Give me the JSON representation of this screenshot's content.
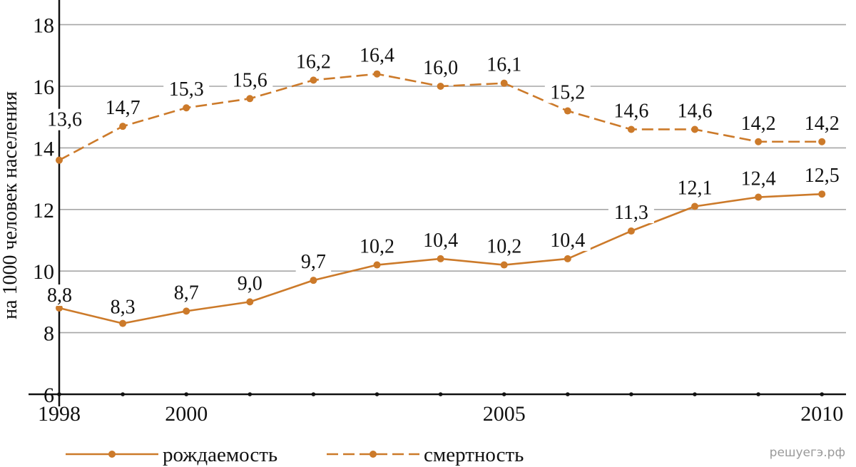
{
  "colors": {
    "series": "#cc7a2a",
    "grid": "#a6a6a6",
    "axis": "#111111"
  },
  "watermark": "решуегэ.рф",
  "chart_data": {
    "type": "line",
    "ylabel": "на 1000 человек населения",
    "ylim": [
      6,
      19
    ],
    "yticks": [
      6,
      8,
      10,
      12,
      14,
      16,
      18
    ],
    "ytick_labels": [
      "6",
      "8",
      "10",
      "12",
      "14",
      "16",
      "18"
    ],
    "x": [
      1998,
      1999,
      2000,
      2001,
      2002,
      2003,
      2004,
      2005,
      2006,
      2007,
      2008,
      2009,
      2010
    ],
    "xticks_labeled": [
      1998,
      2000,
      2005,
      2010
    ],
    "xtick_labels": [
      "1998",
      "2000",
      "2005",
      "2010"
    ],
    "grid": true,
    "legend_position": "bottom",
    "series": [
      {
        "name": "рождаемость",
        "style": "solid",
        "values": [
          8.8,
          8.3,
          8.7,
          9.0,
          9.7,
          10.2,
          10.4,
          10.2,
          10.4,
          11.3,
          12.1,
          12.4,
          12.5
        ],
        "labels": [
          "8,8",
          "8,3",
          "8,7",
          "9,0",
          "9,7",
          "10,2",
          "10,4",
          "10,2",
          "10,4",
          "11,3",
          "12,1",
          "12,4",
          "12,5"
        ]
      },
      {
        "name": "смертность",
        "style": "dashed",
        "values": [
          13.6,
          14.7,
          15.3,
          15.6,
          16.2,
          16.4,
          16.0,
          16.1,
          15.2,
          14.6,
          14.6,
          14.2,
          14.2
        ],
        "labels": [
          "13,6",
          "14,7",
          "15,3",
          "15,6",
          "16,2",
          "16,4",
          "16,0",
          "16,1",
          "15,2",
          "14,6",
          "14,6",
          "14,2",
          "14,2"
        ]
      }
    ]
  }
}
